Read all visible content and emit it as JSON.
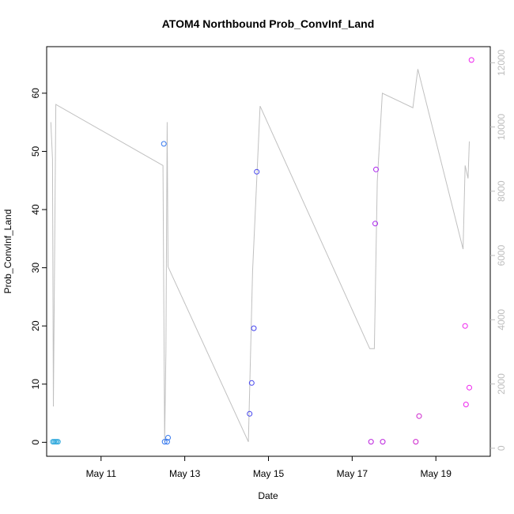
{
  "chart_data": {
    "type": "scatter",
    "title": "ATOM4 Northbound Prob_ConvInf_Land",
    "xlabel": "Date",
    "ylabel": "Prob_ConvInf_Land",
    "x_ticks": [
      "May 11",
      "May 13",
      "May 15",
      "May 17",
      "May 19"
    ],
    "x_tick_values": [
      11,
      13,
      15,
      17,
      19
    ],
    "xlim": [
      9.7,
      20.3
    ],
    "ylim": [
      -2.4,
      68
    ],
    "y_ticks": [
      0,
      10,
      20,
      30,
      40,
      50,
      60
    ],
    "y2lim": [
      -250,
      12500
    ],
    "y2_ticks": [
      0,
      2000,
      4000,
      6000,
      8000,
      10000,
      12000
    ],
    "grid": false,
    "colors": {
      "line": "#c0c0c0",
      "axis": "#000000",
      "right_axis": "#bdbdbd"
    },
    "series": [
      {
        "type": "scatter",
        "points": [
          {
            "x": 9.85,
            "y": 0.1,
            "color": "#33aadd"
          },
          {
            "x": 9.88,
            "y": 0.1,
            "color": "#33aadd"
          },
          {
            "x": 9.91,
            "y": 0.1,
            "color": "#33aadd"
          },
          {
            "x": 9.94,
            "y": 0.1,
            "color": "#33aadd"
          },
          {
            "x": 9.97,
            "y": 0.1,
            "color": "#33aadd"
          },
          {
            "x": 12.5,
            "y": 51.3,
            "color": "#3377ee"
          },
          {
            "x": 12.52,
            "y": 0.1,
            "color": "#3377ee"
          },
          {
            "x": 12.58,
            "y": 0.1,
            "color": "#3377ee"
          },
          {
            "x": 12.6,
            "y": 0.8,
            "color": "#3377ee"
          },
          {
            "x": 14.55,
            "y": 4.9,
            "color": "#4444ee"
          },
          {
            "x": 14.6,
            "y": 10.2,
            "color": "#4444ee"
          },
          {
            "x": 14.65,
            "y": 19.6,
            "color": "#4444ee"
          },
          {
            "x": 14.72,
            "y": 46.5,
            "color": "#4444ee"
          },
          {
            "x": 17.45,
            "y": 0.1,
            "color": "#bb22dd"
          },
          {
            "x": 17.55,
            "y": 37.6,
            "color": "#aa22ee"
          },
          {
            "x": 17.57,
            "y": 46.9,
            "color": "#aa22ee"
          },
          {
            "x": 17.73,
            "y": 0.1,
            "color": "#bb22dd"
          },
          {
            "x": 18.52,
            "y": 0.1,
            "color": "#cc22cc"
          },
          {
            "x": 18.6,
            "y": 4.5,
            "color": "#cc22cc"
          },
          {
            "x": 19.7,
            "y": 20.0,
            "color": "#ee22ee"
          },
          {
            "x": 19.72,
            "y": 6.5,
            "color": "#ee22ee"
          },
          {
            "x": 19.8,
            "y": 9.4,
            "color": "#ee22ee"
          },
          {
            "x": 19.85,
            "y": 65.7,
            "color": "#ee22ee"
          }
        ]
      },
      {
        "type": "line",
        "axis": "right",
        "points": [
          {
            "x": 9.8,
            "y": 10150
          },
          {
            "x": 9.84,
            "y": 9000
          },
          {
            "x": 9.86,
            "y": 1300
          },
          {
            "x": 9.92,
            "y": 10700
          },
          {
            "x": 12.48,
            "y": 8800
          },
          {
            "x": 12.52,
            "y": 200
          },
          {
            "x": 12.55,
            "y": 3000
          },
          {
            "x": 12.58,
            "y": 10150
          },
          {
            "x": 12.6,
            "y": 5650
          },
          {
            "x": 14.52,
            "y": 200
          },
          {
            "x": 14.62,
            "y": 5500
          },
          {
            "x": 14.8,
            "y": 10650
          },
          {
            "x": 17.42,
            "y": 3100
          },
          {
            "x": 17.53,
            "y": 3100
          },
          {
            "x": 17.6,
            "y": 8300
          },
          {
            "x": 17.72,
            "y": 11050
          },
          {
            "x": 18.45,
            "y": 10600
          },
          {
            "x": 18.57,
            "y": 11800
          },
          {
            "x": 19.65,
            "y": 6200
          },
          {
            "x": 19.7,
            "y": 8800
          },
          {
            "x": 19.77,
            "y": 8400
          },
          {
            "x": 19.8,
            "y": 9550
          }
        ]
      }
    ]
  }
}
